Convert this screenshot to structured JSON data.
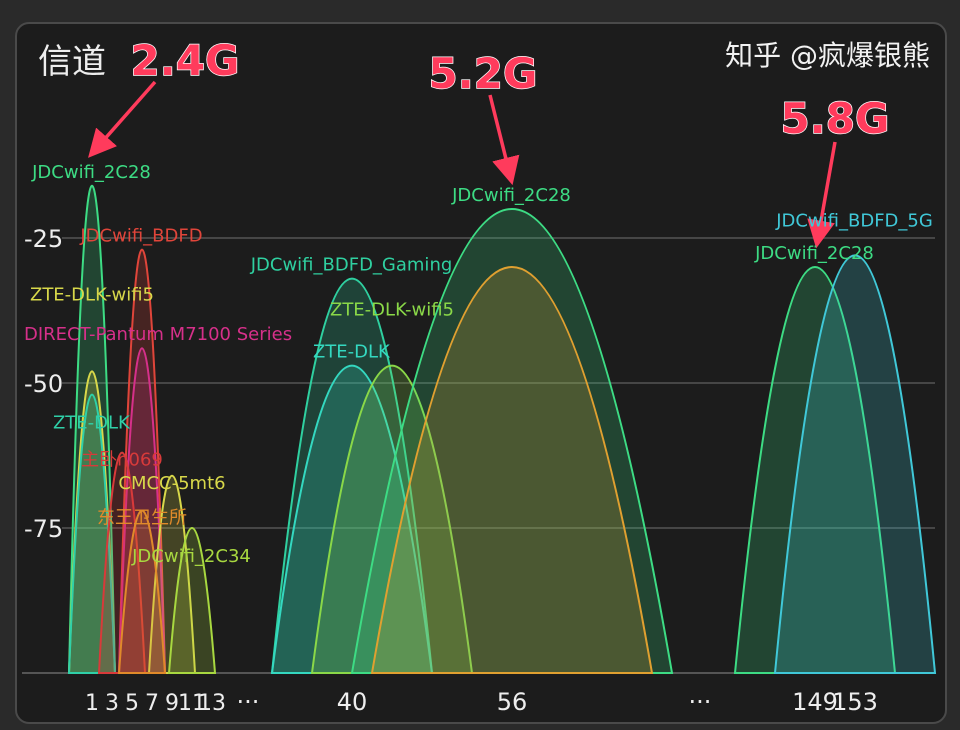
{
  "title": "信道",
  "watermark": "知乎 @疯爆银熊",
  "annotations": [
    {
      "text": "2.4G",
      "color": "#ff3b5c"
    },
    {
      "text": "5.2G",
      "color": "#ff3b5c"
    },
    {
      "text": "5.8G",
      "color": "#ff3b5c"
    }
  ],
  "chart_data": {
    "type": "area",
    "xlabel": "",
    "ylabel": "",
    "ylim": [
      -100,
      0
    ],
    "yticks": [
      "-25",
      "-50",
      "-75"
    ],
    "ytick_values": [
      -25,
      -50,
      -75
    ],
    "xtick_labels": [
      "1",
      "3",
      "5",
      "7",
      "9",
      "11",
      "13",
      "···",
      "40",
      "56",
      "···",
      "149",
      "153"
    ],
    "xtick_channels": [
      1,
      3,
      5,
      7,
      9,
      11,
      13,
      null,
      40,
      56,
      null,
      149,
      153
    ],
    "grid": true,
    "networks": [
      {
        "name": "JDCwifi_2C28",
        "channel": 1,
        "signal": -16,
        "span": 2,
        "color": "#3ddc84"
      },
      {
        "name": "JDCwifi_BDFD",
        "channel": 6,
        "signal": -27,
        "span": 2,
        "color": "#e0453a"
      },
      {
        "name": "DIRECT-Pantum M7100 Series",
        "channel": 6,
        "signal": -44,
        "span": 2,
        "color": "#d6308a"
      },
      {
        "name": "ZTE-DLK-wifi5",
        "channel": 1,
        "signal": -48,
        "span": 2,
        "color": "#d8d84a"
      },
      {
        "name": "ZTE-DLK",
        "channel": 1,
        "signal": -52,
        "span": 2,
        "color": "#2fd0a8"
      },
      {
        "name": "主卧n069",
        "channel": 4,
        "signal": -62,
        "span": 2,
        "color": "#d83a3a"
      },
      {
        "name": "CMCC-5mt6",
        "channel": 9,
        "signal": -66,
        "span": 2,
        "color": "#d8d84a"
      },
      {
        "name": "东王卫生所",
        "channel": 6,
        "signal": -72,
        "span": 2,
        "color": "#e08a2a"
      },
      {
        "name": "JDCwifi_2C34",
        "channel": 11,
        "signal": -75,
        "span": 2,
        "color": "#a8d840"
      },
      {
        "name": "JDCwifi_BDFD_Gaming",
        "channel": 40,
        "signal": -32,
        "span": 8,
        "color": "#2fd0a0"
      },
      {
        "name": "ZTE-DLK",
        "channel": 40,
        "signal": -47,
        "span": 8,
        "color": "#34d8c0"
      },
      {
        "name": "ZTE-DLK-wifi5",
        "channel": 44,
        "signal": -47,
        "span": 8,
        "color": "#8ad848"
      },
      {
        "name": "JDCwifi_2C28",
        "channel": 56,
        "signal": -20,
        "span": 16,
        "color": "#3ddc84"
      },
      {
        "name": "",
        "channel": 56,
        "signal": -30,
        "span": 14,
        "color": "#e0a030"
      },
      {
        "name": "JDCwifi_2C28",
        "channel": 149,
        "signal": -30,
        "span": 8,
        "color": "#3ddc84"
      },
      {
        "name": "JDCwifi_BDFD_5G",
        "channel": 153,
        "signal": -28,
        "span": 8,
        "color": "#40c8d8"
      }
    ]
  }
}
